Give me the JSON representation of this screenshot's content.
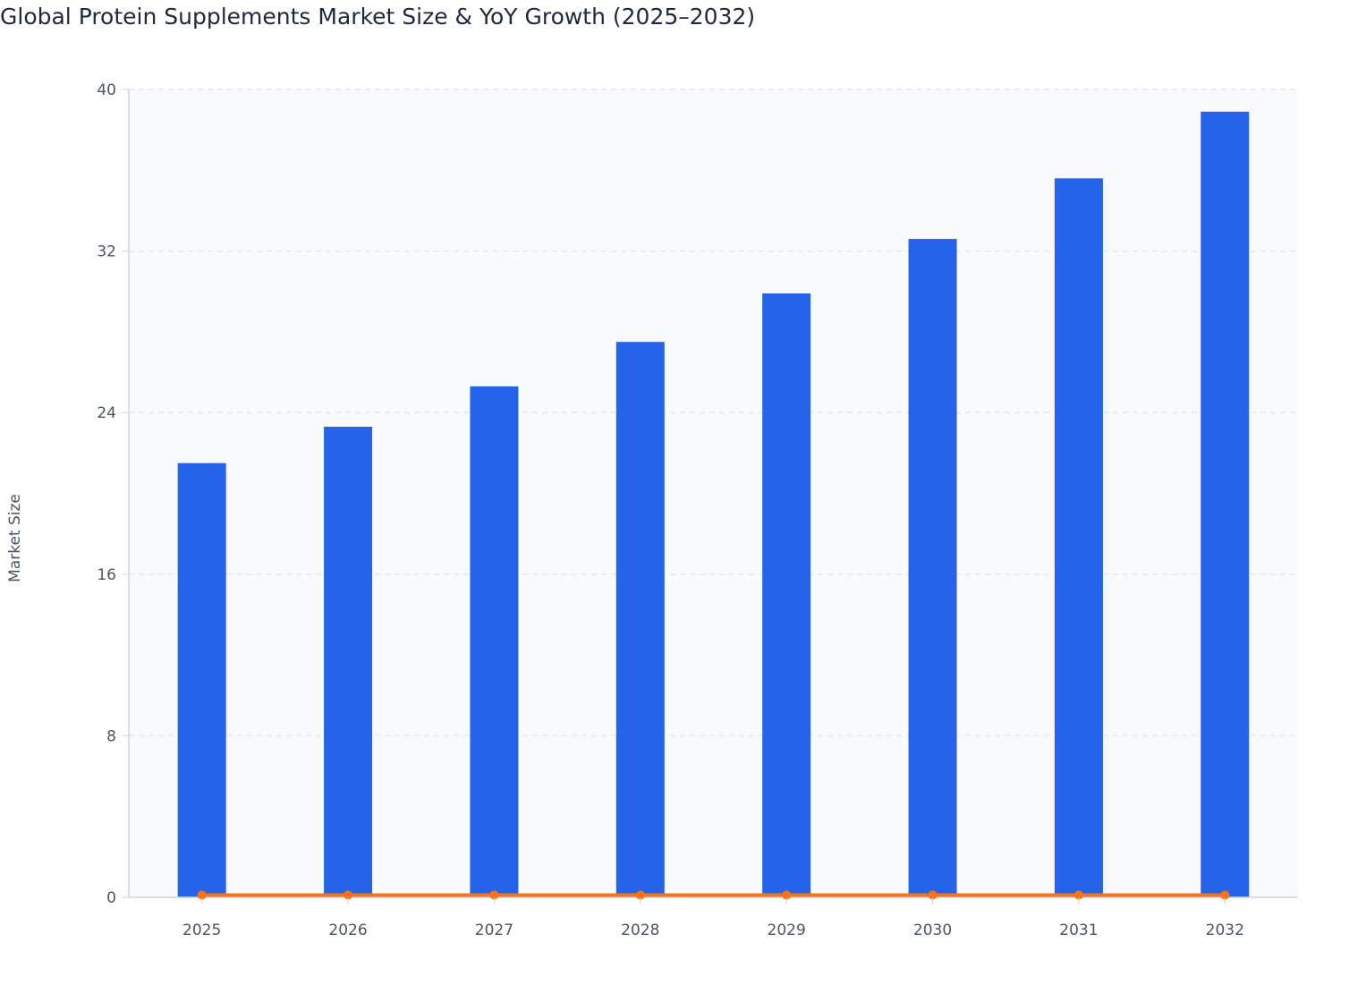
{
  "chart_data": {
    "type": "bar",
    "title": "Global Protein Supplements Market Size & YoY Growth (2025–2032)",
    "xlabel": "",
    "ylabel": "Market Size",
    "categories": [
      "2025",
      "2026",
      "2027",
      "2028",
      "2029",
      "2030",
      "2031",
      "2032"
    ],
    "series": [
      {
        "type": "bar",
        "values": [
          21.5,
          23.3,
          25.3,
          27.5,
          29.9,
          32.6,
          35.6,
          38.9
        ],
        "color": "#2563eb"
      },
      {
        "type": "line",
        "values": [
          0.09,
          0.09,
          0.09,
          0.09,
          0.09,
          0.09,
          0.09,
          0.09
        ],
        "color": "#f97316"
      }
    ],
    "ylim": [
      0,
      40
    ],
    "yticks": [
      0,
      8,
      16,
      24,
      32,
      40
    ],
    "grid": true,
    "plot_background": "#f8fafc"
  }
}
